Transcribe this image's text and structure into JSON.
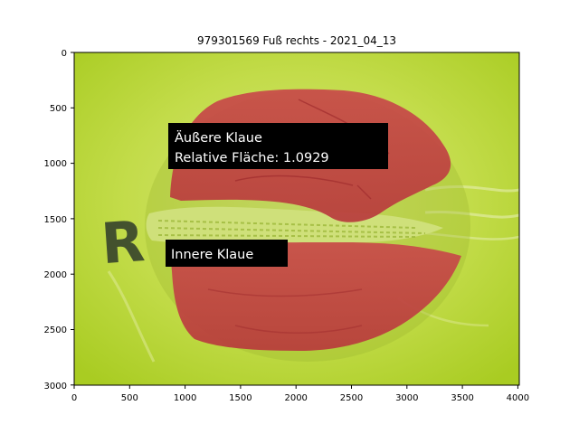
{
  "figure": {
    "title": "979301569 Fuß rechts - 2021_04_13",
    "x_ticks": [
      "0",
      "500",
      "1000",
      "1500",
      "2000",
      "2500",
      "3000",
      "3500",
      "4000"
    ],
    "y_ticks": [
      "0",
      "500",
      "1000",
      "1500",
      "2000",
      "2500",
      "3000"
    ]
  },
  "annotations": {
    "outer_claw_label": "Äußere Klaue",
    "relative_area_label": "Relative Fläche: 1.0929",
    "inner_claw_label": "Innere Klaue"
  },
  "photo": {
    "marker_letter": "R",
    "colors": {
      "background": "#b9d63a",
      "mask": "#c64545",
      "interdigital": "#cfe07a"
    }
  }
}
